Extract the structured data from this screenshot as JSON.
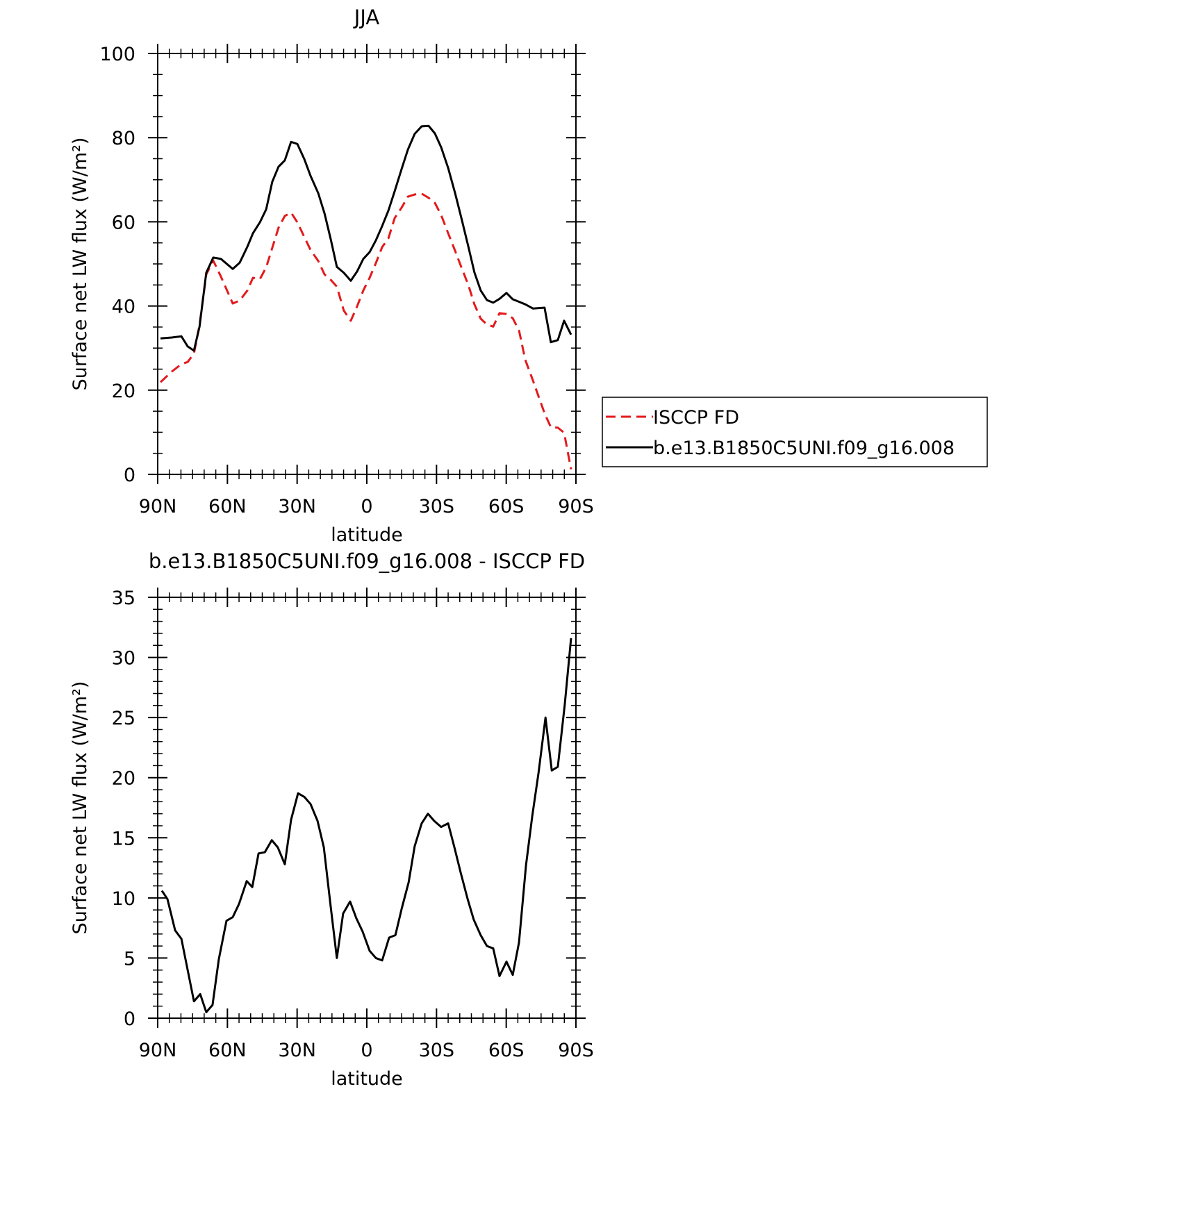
{
  "chart_data": [
    {
      "type": "line",
      "title": "JJA",
      "xlabel": "latitude",
      "ylabel": "Surface net LW flux (W/m²)",
      "xlim": [
        90,
        -90
      ],
      "ylim": [
        0,
        100
      ],
      "xticks": [
        {
          "value": 90,
          "label": "90N"
        },
        {
          "value": 60,
          "label": "60N"
        },
        {
          "value": 30,
          "label": "30N"
        },
        0,
        {
          "value": -30,
          "label": "30S"
        },
        {
          "value": -60,
          "label": "60S"
        },
        {
          "value": -90,
          "label": "90S"
        }
      ],
      "yticks": [
        0,
        20,
        40,
        60,
        80,
        100
      ],
      "x": [
        88.8,
        84.0,
        79.8,
        77.1,
        74.4,
        72.0,
        69.1,
        66.1,
        62.8,
        57.7,
        54.7,
        51.4,
        49.0,
        46.0,
        43.3,
        40.7,
        38.0,
        35.3,
        32.6,
        29.9,
        26.9,
        24.2,
        20.9,
        18.2,
        15.5,
        12.9,
        9.9,
        6.9,
        4.2,
        1.5,
        -1.2,
        -3.9,
        -6.6,
        -9.3,
        -12.0,
        -15.0,
        -17.7,
        -20.6,
        -23.6,
        -26.6,
        -29.3,
        -32.0,
        -35.0,
        -38.0,
        -40.7,
        -43.7,
        -46.3,
        -49.0,
        -51.7,
        -54.4,
        -57.1,
        -60.1,
        -62.8,
        -65.5,
        -68.2,
        -71.5,
        -76.5,
        -79.2,
        -82.2,
        -84.9,
        -87.9
      ],
      "series": [
        {
          "name": "ISCCP FD",
          "color": "#e31a1c",
          "line_style": "dashed",
          "values": [
            21.9,
            24.4,
            26.2,
            26.7,
            28.7,
            35.5,
            47.5,
            50.8,
            47.0,
            40.6,
            41.3,
            43.7,
            46.7,
            46.4,
            49.2,
            53.8,
            58.6,
            61.4,
            62.2,
            59.9,
            56.4,
            53.3,
            50.7,
            47.5,
            46.2,
            44.6,
            38.9,
            36.5,
            39.9,
            43.7,
            46.7,
            50.2,
            54.0,
            56.1,
            60.9,
            63.4,
            66.0,
            66.5,
            66.7,
            65.7,
            64.5,
            61.6,
            57.3,
            53.1,
            49.2,
            45.0,
            40.4,
            37.0,
            35.6,
            35.1,
            38.3,
            38.1,
            37.1,
            34.2,
            27.2,
            22.3,
            14.5,
            11.2,
            11.1,
            9.9,
            1.2
          ]
        },
        {
          "name": "b.e13.B1850C5UNI.f09_g16.008",
          "color": "#000000",
          "line_style": "solid",
          "values": [
            32.3,
            32.5,
            32.8,
            30.4,
            29.4,
            35.1,
            47.9,
            51.5,
            51.2,
            48.8,
            50.3,
            54.1,
            57.3,
            59.9,
            63.0,
            69.5,
            73.1,
            74.6,
            79.0,
            78.5,
            74.9,
            70.9,
            66.8,
            62.0,
            55.8,
            49.3,
            47.9,
            46.0,
            48.2,
            51.2,
            52.8,
            55.6,
            59.0,
            62.7,
            67.3,
            72.6,
            77.2,
            80.9,
            82.7,
            82.8,
            81.0,
            77.7,
            72.8,
            66.8,
            60.9,
            54.1,
            48.0,
            43.7,
            41.4,
            40.8,
            41.7,
            43.1,
            41.6,
            41.0,
            40.4,
            39.4,
            39.6,
            31.4,
            31.9,
            36.5,
            33.2
          ]
        }
      ],
      "legend": "outside-right"
    },
    {
      "type": "line",
      "title": "b.e13.B1850C5UNI.f09_g16.008 - ISCCP FD",
      "xlabel": "latitude",
      "ylabel": "Surface net LW flux (W/m²)",
      "xlim": [
        90,
        -90
      ],
      "ylim": [
        0,
        35
      ],
      "xticks": [
        {
          "value": 90,
          "label": "90N"
        },
        {
          "value": 60,
          "label": "60N"
        },
        {
          "value": 30,
          "label": "30N"
        },
        0,
        {
          "value": -30,
          "label": "30S"
        },
        {
          "value": -60,
          "label": "60S"
        },
        {
          "value": -90,
          "label": "90S"
        }
      ],
      "yticks": [
        0,
        5,
        10,
        15,
        20,
        25,
        30,
        35
      ],
      "x": [
        88.2,
        85.8,
        82.5,
        79.8,
        77.1,
        74.4,
        71.7,
        69.1,
        66.4,
        63.7,
        60.4,
        57.7,
        55.0,
        51.7,
        49.3,
        46.6,
        43.9,
        40.9,
        38.3,
        35.3,
        32.6,
        29.6,
        26.9,
        24.2,
        21.2,
        18.5,
        15.5,
        12.9,
        10.2,
        7.2,
        4.5,
        1.8,
        -1.2,
        -3.9,
        -6.6,
        -9.6,
        -12.3,
        -15.0,
        -18.0,
        -20.6,
        -23.6,
        -26.3,
        -29.0,
        -32.0,
        -35.0,
        -37.7,
        -40.4,
        -43.4,
        -46.0,
        -49.0,
        -51.7,
        -54.4,
        -57.1,
        -60.1,
        -62.8,
        -65.5,
        -68.5,
        -71.2,
        -73.9,
        -76.9,
        -79.6,
        -82.2,
        -85.2,
        -87.9
      ],
      "series": [
        {
          "color": "#000000",
          "line_style": "solid",
          "values": [
            10.6,
            9.9,
            7.3,
            6.6,
            4.0,
            1.4,
            2.0,
            0.5,
            1.1,
            4.9,
            8.1,
            8.4,
            9.5,
            11.4,
            10.9,
            13.7,
            13.8,
            14.8,
            14.2,
            12.8,
            16.5,
            18.7,
            18.4,
            17.8,
            16.4,
            14.2,
            9.2,
            5.0,
            8.7,
            9.7,
            8.3,
            7.2,
            5.6,
            5.0,
            4.8,
            6.7,
            6.9,
            9.1,
            11.3,
            14.3,
            16.2,
            17.0,
            16.4,
            15.9,
            16.2,
            14.2,
            12.1,
            9.9,
            8.2,
            6.9,
            6.0,
            5.8,
            3.5,
            4.7,
            3.6,
            6.3,
            12.7,
            16.8,
            20.4,
            25.0,
            20.6,
            20.9,
            26.1,
            31.6
          ]
        }
      ]
    }
  ]
}
